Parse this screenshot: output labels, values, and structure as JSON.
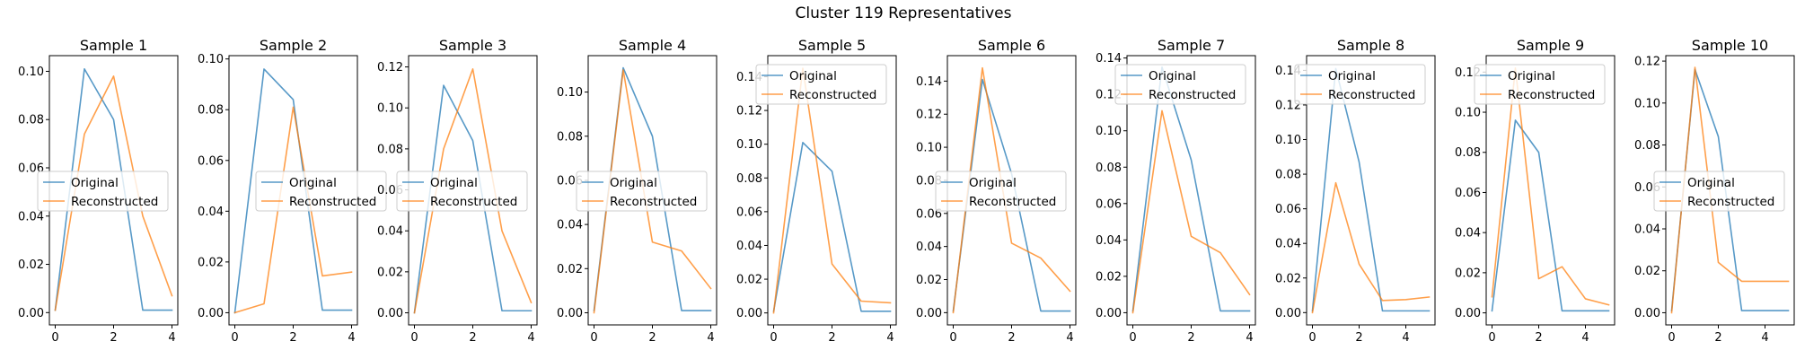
{
  "figure": {
    "title": "Cluster 119 Representatives"
  },
  "colors": {
    "original": "#1f77b4",
    "reconstructed": "#ff7f0e"
  },
  "chart_data": [
    {
      "type": "line",
      "title": "Sample 1",
      "xlim": [
        -0.2,
        4.2
      ],
      "ylim": [
        -0.0051,
        0.1065
      ],
      "xticks": [
        0,
        2,
        4
      ],
      "xtick_labels": [
        "0",
        "2",
        "4"
      ],
      "yticks": [
        0.0,
        0.02,
        0.04,
        0.06,
        0.08,
        0.1
      ],
      "ytick_labels": [
        "0.00",
        "0.02",
        "0.04",
        "0.06",
        "0.08",
        "0.10"
      ],
      "legend": {
        "position": "center-left",
        "entries": [
          "Original",
          "Reconstructed"
        ]
      },
      "series": [
        {
          "name": "Original",
          "x": [
            0,
            1,
            2,
            3,
            4
          ],
          "values": [
            0.001,
            0.101,
            0.08,
            0.001,
            0.001
          ]
        },
        {
          "name": "Reconstructed",
          "x": [
            0,
            1,
            2,
            3,
            4
          ],
          "values": [
            0.001,
            0.074,
            0.098,
            0.04,
            0.007
          ]
        }
      ]
    },
    {
      "type": "line",
      "title": "Sample 2",
      "xlim": [
        -0.2,
        4.2
      ],
      "ylim": [
        -0.0048,
        0.1013
      ],
      "xticks": [
        0,
        2,
        4
      ],
      "xtick_labels": [
        "0",
        "2",
        "4"
      ],
      "yticks": [
        0.0,
        0.02,
        0.04,
        0.06,
        0.08,
        0.1
      ],
      "ytick_labels": [
        "0.00",
        "0.02",
        "0.04",
        "0.06",
        "0.08",
        "0.10"
      ],
      "legend": {
        "position": "center-right",
        "entries": [
          "Original",
          "Reconstructed"
        ]
      },
      "series": [
        {
          "name": "Original",
          "x": [
            0,
            1,
            2,
            3,
            4
          ],
          "values": [
            0.0,
            0.096,
            0.084,
            0.001,
            0.001
          ]
        },
        {
          "name": "Reconstructed",
          "x": [
            0,
            1,
            2,
            3,
            4
          ],
          "values": [
            0.0,
            0.0035,
            0.081,
            0.0145,
            0.016
          ]
        }
      ]
    },
    {
      "type": "line",
      "title": "Sample 3",
      "xlim": [
        -0.2,
        4.2
      ],
      "ylim": [
        -0.0059,
        0.1255
      ],
      "xticks": [
        0,
        2,
        4
      ],
      "xtick_labels": [
        "0",
        "2",
        "4"
      ],
      "yticks": [
        0.0,
        0.02,
        0.04,
        0.06,
        0.08,
        0.1,
        0.12
      ],
      "ytick_labels": [
        "0.00",
        "0.02",
        "0.04",
        "0.06",
        "0.08",
        "0.10",
        "0.12"
      ],
      "legend": {
        "position": "center",
        "entries": [
          "Original",
          "Reconstructed"
        ]
      },
      "series": [
        {
          "name": "Original",
          "x": [
            0,
            1,
            2,
            3,
            4
          ],
          "values": [
            0.0,
            0.111,
            0.084,
            0.001,
            0.001
          ]
        },
        {
          "name": "Reconstructed",
          "x": [
            0,
            1,
            2,
            3,
            4
          ],
          "values": [
            0.0,
            0.08,
            0.119,
            0.04,
            0.005
          ]
        }
      ]
    },
    {
      "type": "line",
      "title": "Sample 4",
      "xlim": [
        -0.2,
        4.2
      ],
      "ylim": [
        -0.0055,
        0.1165
      ],
      "xticks": [
        0,
        2,
        4
      ],
      "xtick_labels": [
        "0",
        "2",
        "4"
      ],
      "yticks": [
        0.0,
        0.02,
        0.04,
        0.06,
        0.08,
        0.1
      ],
      "ytick_labels": [
        "0.00",
        "0.02",
        "0.04",
        "0.06",
        "0.08",
        "0.10"
      ],
      "legend": {
        "position": "center",
        "entries": [
          "Original",
          "Reconstructed"
        ]
      },
      "series": [
        {
          "name": "Original",
          "x": [
            0,
            1,
            2,
            3,
            4
          ],
          "values": [
            0.001,
            0.111,
            0.08,
            0.001,
            0.001
          ]
        },
        {
          "name": "Reconstructed",
          "x": [
            0,
            1,
            2,
            3,
            4
          ],
          "values": [
            0.0,
            0.11,
            0.032,
            0.028,
            0.011
          ]
        }
      ]
    },
    {
      "type": "line",
      "title": "Sample 5",
      "xlim": [
        -0.2,
        4.2
      ],
      "ylim": [
        -0.0071,
        0.1525
      ],
      "xticks": [
        0,
        2,
        4
      ],
      "xtick_labels": [
        "0",
        "2",
        "4"
      ],
      "yticks": [
        0.0,
        0.02,
        0.04,
        0.06,
        0.08,
        0.1,
        0.12,
        0.14
      ],
      "ytick_labels": [
        "0.00",
        "0.02",
        "0.04",
        "0.06",
        "0.08",
        "0.10",
        "0.12",
        "0.14"
      ],
      "legend": {
        "position": "upper-left",
        "entries": [
          "Original",
          "Reconstructed"
        ]
      },
      "series": [
        {
          "name": "Original",
          "x": [
            0,
            1,
            2,
            3,
            4
          ],
          "values": [
            0.001,
            0.101,
            0.084,
            0.001,
            0.001
          ]
        },
        {
          "name": "Reconstructed",
          "x": [
            0,
            1,
            2,
            3,
            4
          ],
          "values": [
            0.0,
            0.145,
            0.029,
            0.007,
            0.006
          ]
        }
      ]
    },
    {
      "type": "line",
      "title": "Sample 6",
      "xlim": [
        -0.2,
        4.2
      ],
      "ylim": [
        -0.0074,
        0.1554
      ],
      "xticks": [
        0,
        2,
        4
      ],
      "xtick_labels": [
        "0",
        "2",
        "4"
      ],
      "yticks": [
        0.0,
        0.02,
        0.04,
        0.06,
        0.08,
        0.1,
        0.12,
        0.14
      ],
      "ytick_labels": [
        "0.00",
        "0.02",
        "0.04",
        "0.06",
        "0.08",
        "0.10",
        "0.12",
        "0.14"
      ],
      "legend": {
        "position": "center",
        "entries": [
          "Original",
          "Reconstructed"
        ]
      },
      "series": [
        {
          "name": "Original",
          "x": [
            0,
            1,
            2,
            3,
            4
          ],
          "values": [
            0.001,
            0.141,
            0.084,
            0.001,
            0.001
          ]
        },
        {
          "name": "Reconstructed",
          "x": [
            0,
            1,
            2,
            3,
            4
          ],
          "values": [
            0.0,
            0.148,
            0.042,
            0.033,
            0.013
          ]
        }
      ]
    },
    {
      "type": "line",
      "title": "Sample 7",
      "xlim": [
        -0.2,
        4.2
      ],
      "ylim": [
        -0.0067,
        0.1413
      ],
      "xticks": [
        0,
        2,
        4
      ],
      "xtick_labels": [
        "0",
        "2",
        "4"
      ],
      "yticks": [
        0.0,
        0.02,
        0.04,
        0.06,
        0.08,
        0.1,
        0.12,
        0.14
      ],
      "ytick_labels": [
        "0.00",
        "0.02",
        "0.04",
        "0.06",
        "0.08",
        "0.10",
        "0.12",
        "0.14"
      ],
      "legend": {
        "position": "upper-left",
        "entries": [
          "Original",
          "Reconstructed"
        ]
      },
      "series": [
        {
          "name": "Original",
          "x": [
            0,
            1,
            2,
            3,
            4
          ],
          "values": [
            0.001,
            0.135,
            0.084,
            0.001,
            0.001
          ]
        },
        {
          "name": "Reconstructed",
          "x": [
            0,
            1,
            2,
            3,
            4
          ],
          "values": [
            0.0,
            0.111,
            0.042,
            0.033,
            0.01
          ]
        }
      ]
    },
    {
      "type": "line",
      "title": "Sample 8",
      "xlim": [
        -0.25,
        5.25
      ],
      "ylim": [
        -0.0071,
        0.1485
      ],
      "xticks": [
        0,
        2,
        4
      ],
      "xtick_labels": [
        "0",
        "2",
        "4"
      ],
      "yticks": [
        0.0,
        0.02,
        0.04,
        0.06,
        0.08,
        0.1,
        0.12,
        0.14
      ],
      "ytick_labels": [
        "0.00",
        "0.02",
        "0.04",
        "0.06",
        "0.08",
        "0.10",
        "0.12",
        "0.14"
      ],
      "legend": {
        "position": "upper-left",
        "entries": [
          "Original",
          "Reconstructed"
        ]
      },
      "series": [
        {
          "name": "Original",
          "x": [
            0,
            1,
            2,
            3,
            4,
            5
          ],
          "values": [
            0.001,
            0.141,
            0.087,
            0.001,
            0.001,
            0.001
          ]
        },
        {
          "name": "Reconstructed",
          "x": [
            0,
            1,
            2,
            3,
            4,
            5
          ],
          "values": [
            0.0,
            0.075,
            0.028,
            0.007,
            0.0075,
            0.009
          ]
        }
      ]
    },
    {
      "type": "line",
      "title": "Sample 9",
      "xlim": [
        -0.25,
        5.25
      ],
      "ylim": [
        -0.006,
        0.1282
      ],
      "xticks": [
        0,
        2,
        4
      ],
      "xtick_labels": [
        "0",
        "2",
        "4"
      ],
      "yticks": [
        0.0,
        0.02,
        0.04,
        0.06,
        0.08,
        0.1,
        0.12
      ],
      "ytick_labels": [
        "0.00",
        "0.02",
        "0.04",
        "0.06",
        "0.08",
        "0.10",
        "0.12"
      ],
      "legend": {
        "position": "upper-left",
        "entries": [
          "Original",
          "Reconstructed"
        ]
      },
      "series": [
        {
          "name": "Original",
          "x": [
            0,
            1,
            2,
            3,
            4,
            5
          ],
          "values": [
            0.001,
            0.096,
            0.08,
            0.001,
            0.001,
            0.001
          ]
        },
        {
          "name": "Reconstructed",
          "x": [
            0,
            1,
            2,
            3,
            4,
            5
          ],
          "values": [
            0.008,
            0.122,
            0.017,
            0.023,
            0.007,
            0.004
          ]
        }
      ]
    },
    {
      "type": "line",
      "title": "Sample 10",
      "xlim": [
        -0.25,
        5.25
      ],
      "ylim": [
        -0.0058,
        0.1226
      ],
      "xticks": [
        0,
        2,
        4
      ],
      "xtick_labels": [
        "0",
        "2",
        "4"
      ],
      "yticks": [
        0.0,
        0.02,
        0.04,
        0.06,
        0.08,
        0.1,
        0.12
      ],
      "ytick_labels": [
        "0.00",
        "0.02",
        "0.04",
        "0.06",
        "0.08",
        "0.10",
        "0.12"
      ],
      "legend": {
        "position": "center",
        "entries": [
          "Original",
          "Reconstructed"
        ]
      },
      "series": [
        {
          "name": "Original",
          "x": [
            0,
            1,
            2,
            3,
            4,
            5
          ],
          "values": [
            0.001,
            0.116,
            0.084,
            0.001,
            0.001,
            0.001
          ]
        },
        {
          "name": "Reconstructed",
          "x": [
            0,
            1,
            2,
            3,
            4,
            5
          ],
          "values": [
            0.0,
            0.117,
            0.024,
            0.015,
            0.015,
            0.015
          ]
        }
      ]
    }
  ]
}
